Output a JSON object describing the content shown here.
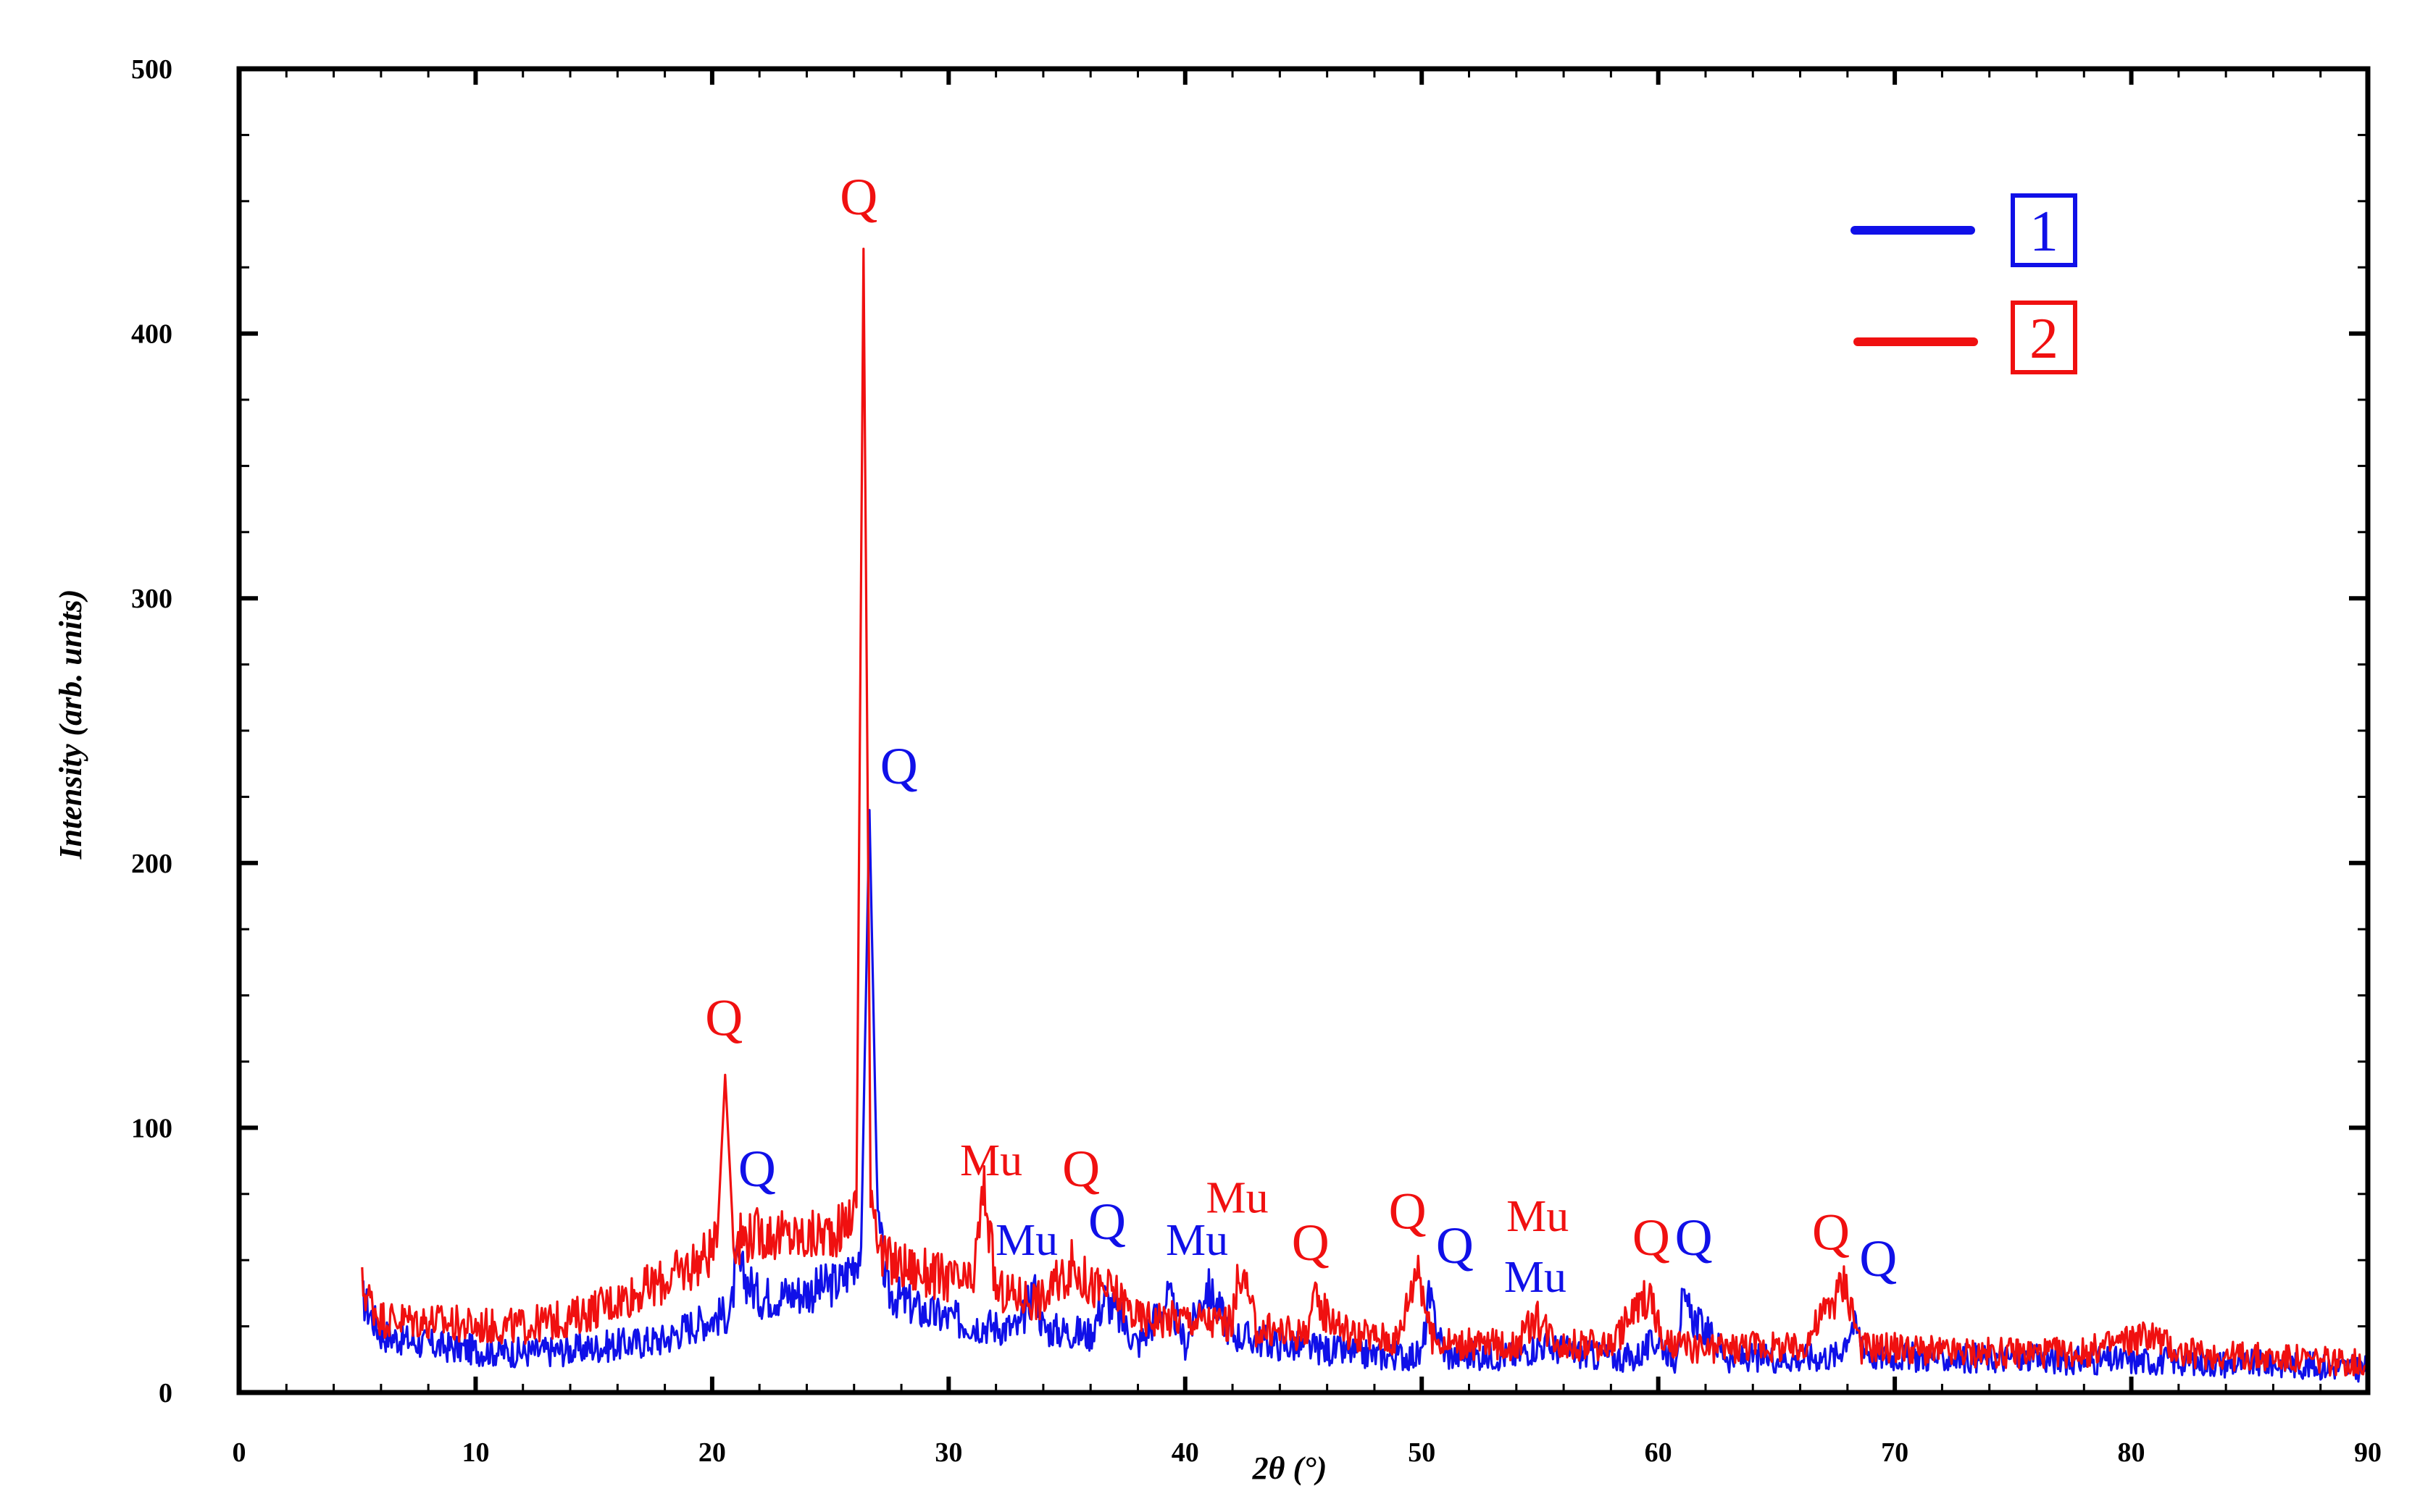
{
  "colors": {
    "series1": "#1010e8",
    "series2": "#f01010",
    "axis": "#000000",
    "background": "#ffffff"
  },
  "chart_data": {
    "type": "line",
    "title": "",
    "xlabel": "2θ (°)",
    "ylabel": "Intensity (arb. units)",
    "xlim": [
      0,
      90
    ],
    "ylim": [
      0,
      500
    ],
    "xticks": [
      0,
      10,
      20,
      30,
      40,
      50,
      60,
      70,
      80,
      90
    ],
    "yticks": [
      0,
      100,
      200,
      300,
      400,
      500
    ],
    "grid": false,
    "legend_position": "top-right",
    "legend": [
      {
        "label": "1",
        "color": "#1010e8"
      },
      {
        "label": "2",
        "color": "#f01010"
      }
    ],
    "series": [
      {
        "name": "1",
        "color": "#1010e8",
        "x": [
          5.2,
          6,
          8,
          10,
          12,
          14,
          16,
          18,
          19,
          20,
          20.8,
          21,
          22,
          24,
          25.5,
          26.3,
          26.65,
          27.0,
          27.4,
          29,
          31,
          33,
          33.6,
          34,
          36,
          36.6,
          38,
          39.3,
          40,
          40.9,
          42,
          44,
          46,
          48,
          50,
          50.3,
          51,
          54,
          55,
          57,
          59,
          60,
          60.7,
          61,
          63,
          66,
          67.6,
          68.2,
          69,
          72,
          75,
          78,
          80,
          82,
          84,
          86,
          88,
          90
        ],
        "y": [
          36,
          22,
          18,
          16,
          15,
          16,
          18,
          20,
          25,
          28,
          30,
          48,
          36,
          38,
          42,
          55,
          220,
          65,
          38,
          30,
          26,
          24,
          40,
          24,
          22,
          36,
          18,
          36,
          18,
          40,
          22,
          18,
          16,
          14,
          14,
          35,
          14,
          14,
          18,
          14,
          13,
          20,
          13,
          33,
          13,
          13,
          14,
          26,
          14,
          13,
          13,
          12,
          12,
          12,
          11,
          11,
          10,
          9
        ]
      },
      {
        "name": "2",
        "color": "#f01010",
        "x": [
          5.2,
          6,
          8,
          10,
          12,
          14,
          16,
          18,
          19.5,
          20.2,
          20.55,
          20.9,
          22,
          24,
          25.5,
          26.1,
          26.4,
          26.7,
          27.2,
          29,
          31,
          31.5,
          32,
          34,
          35.2,
          36,
          37,
          38,
          40,
          42,
          42.3,
          43,
          45,
          45.5,
          47,
          49,
          49.85,
          50.4,
          52,
          54,
          54.8,
          56,
          58,
          59.6,
          60.2,
          62,
          64,
          66,
          67.9,
          68.6,
          70,
          72,
          75,
          78,
          80.8,
          82,
          84,
          86,
          88,
          90
        ],
        "y": [
          40,
          28,
          27,
          25,
          25,
          28,
          35,
          42,
          50,
          55,
          120,
          58,
          60,
          58,
          62,
          70,
          432,
          80,
          50,
          45,
          40,
          78,
          38,
          35,
          48,
          40,
          38,
          28,
          28,
          26,
          48,
          24,
          22,
          34,
          22,
          20,
          50,
          20,
          18,
          18,
          28,
          18,
          18,
          38,
          18,
          16,
          18,
          16,
          42,
          17,
          17,
          15,
          15,
          15,
          22,
          15,
          14,
          13,
          12,
          11
        ]
      }
    ],
    "annotations": [
      {
        "text": "Q",
        "series": "2",
        "x": 20.5,
        "y": 135
      },
      {
        "text": "Q",
        "series": "1",
        "x": 21.9,
        "y": 78
      },
      {
        "text": "Q",
        "series": "2",
        "x": 26.2,
        "y": 445
      },
      {
        "text": "Q",
        "series": "1",
        "x": 27.9,
        "y": 230
      },
      {
        "text": "Mu",
        "series": "2",
        "x": 31.8,
        "y": 82
      },
      {
        "text": "Mu",
        "series": "1",
        "x": 33.3,
        "y": 52
      },
      {
        "text": "Q",
        "series": "2",
        "x": 35.6,
        "y": 78
      },
      {
        "text": "Q",
        "series": "1",
        "x": 36.7,
        "y": 58
      },
      {
        "text": "Mu",
        "series": "1",
        "x": 40.5,
        "y": 52
      },
      {
        "text": "Mu",
        "series": "2",
        "x": 42.2,
        "y": 68
      },
      {
        "text": "Q",
        "series": "2",
        "x": 45.3,
        "y": 50
      },
      {
        "text": "Q",
        "series": "2",
        "x": 49.4,
        "y": 62
      },
      {
        "text": "Q",
        "series": "1",
        "x": 51.4,
        "y": 49
      },
      {
        "text": "Mu",
        "series": "2",
        "x": 54.9,
        "y": 61
      },
      {
        "text": "Mu",
        "series": "1",
        "x": 54.8,
        "y": 38
      },
      {
        "text": "Q",
        "series": "2",
        "x": 59.7,
        "y": 52
      },
      {
        "text": "Q",
        "series": "1",
        "x": 61.5,
        "y": 52
      },
      {
        "text": "Q",
        "series": "2",
        "x": 67.3,
        "y": 54
      },
      {
        "text": "Q",
        "series": "1",
        "x": 69.3,
        "y": 44
      }
    ]
  }
}
